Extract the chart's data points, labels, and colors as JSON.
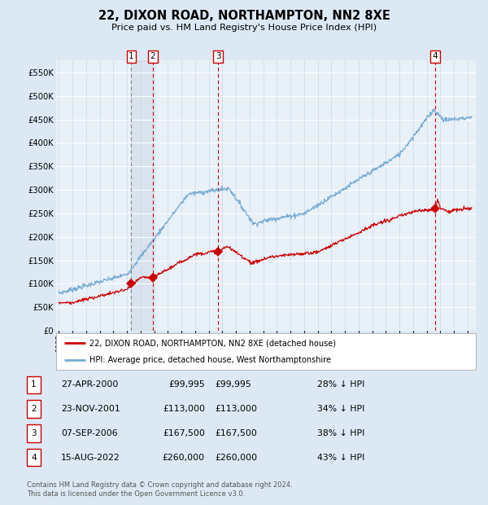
{
  "title": "22, DIXON ROAD, NORTHAMPTON, NN2 8XE",
  "subtitle": "Price paid vs. HM Land Registry's House Price Index (HPI)",
  "legend_red": "22, DIXON ROAD, NORTHAMPTON, NN2 8XE (detached house)",
  "legend_blue": "HPI: Average price, detached house, West Northamptonshire",
  "footer1": "Contains HM Land Registry data © Crown copyright and database right 2024.",
  "footer2": "This data is licensed under the Open Government Licence v3.0.",
  "bg_color": "#dce9f5",
  "plot_bg": "#e8f0f8",
  "red_color": "#cc0000",
  "blue_color": "#7aadd4",
  "ylim": [
    0,
    575000
  ],
  "yticks": [
    0,
    50000,
    100000,
    150000,
    200000,
    250000,
    300000,
    350000,
    400000,
    450000,
    500000,
    550000
  ],
  "trans_years": [
    2000.32,
    2001.9,
    2006.69,
    2022.62
  ],
  "trans_prices": [
    99995,
    113000,
    167500,
    260000
  ],
  "table_rows": [
    {
      "num": 1,
      "date": "27-APR-2000",
      "price": "£99,995",
      "pct": "28% ↓ HPI"
    },
    {
      "num": 2,
      "date": "23-NOV-2001",
      "price": "£113,000",
      "pct": "34% ↓ HPI"
    },
    {
      "num": 3,
      "date": "07-SEP-2006",
      "price": "£167,500",
      "pct": "38% ↓ HPI"
    },
    {
      "num": 4,
      "date": "15-AUG-2022",
      "price": "£260,000",
      "pct": "43% ↓ HPI"
    }
  ]
}
